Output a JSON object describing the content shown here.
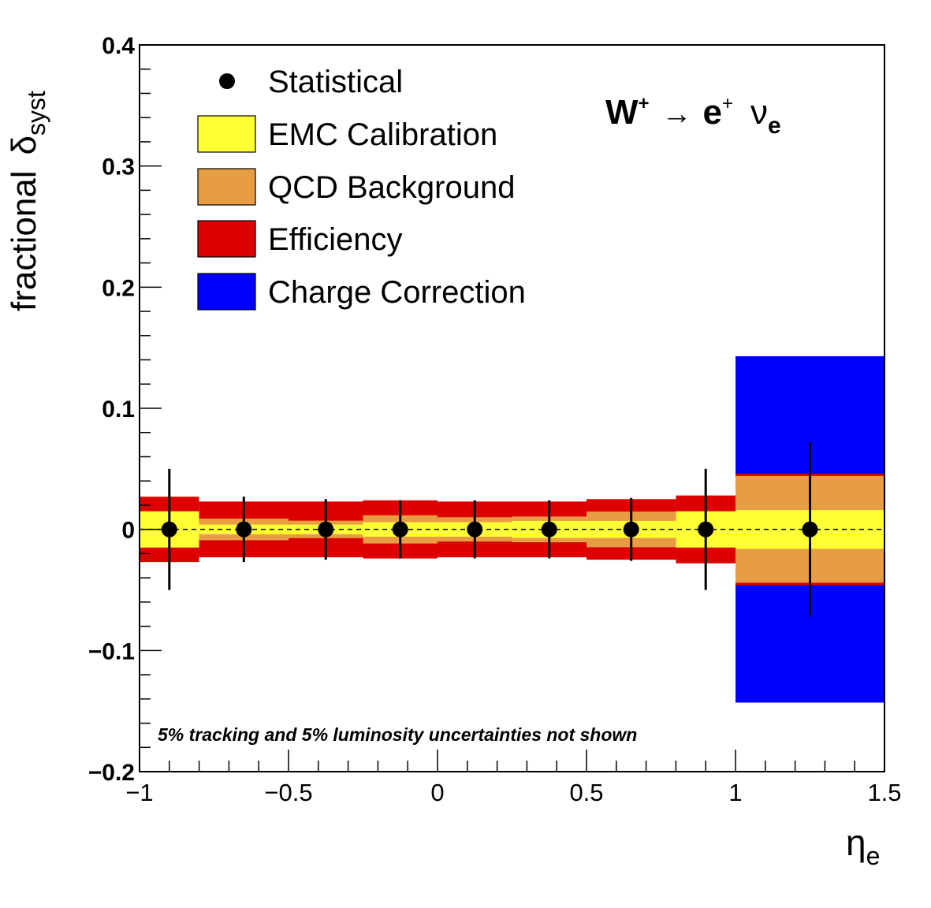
{
  "chart_data": {
    "type": "scatter",
    "xlabel": "η",
    "xlabel_sub": "e",
    "ylabel": "fractional",
    "ylabel_symbol": "δ",
    "ylabel_sub": "syst",
    "xlim": [
      -1,
      1.5
    ],
    "ylim": [
      -0.2,
      0.4
    ],
    "x_ticks": [
      -1,
      -0.5,
      0,
      0.5,
      1,
      1.5
    ],
    "x_tick_labels": [
      "−1",
      "−0.5",
      "0",
      "0.5",
      "1",
      "1.5"
    ],
    "y_ticks": [
      -0.2,
      -0.1,
      0,
      0.1,
      0.2,
      0.3,
      0.4
    ],
    "y_tick_labels": [
      "−0.2",
      "−0.1",
      "0",
      "0.1",
      "0.2",
      "0.3",
      "0.4"
    ],
    "reference_line": 0,
    "process_label": {
      "w": "W",
      "w_sup": "+",
      "arrow": "→",
      "e": "e",
      "e_sup": "+",
      "nu": "ν",
      "nu_sub": "e"
    },
    "note": "5% tracking and 5% luminosity uncertainties not shown",
    "legend": [
      {
        "key": "statistical",
        "label": "Statistical",
        "style": "marker"
      },
      {
        "key": "emc",
        "label": "EMC Calibration",
        "style": "box",
        "color": "#ffff33"
      },
      {
        "key": "qcd",
        "label": "QCD Background",
        "style": "box",
        "color": "#e89c44"
      },
      {
        "key": "efficiency",
        "label": "Efficiency",
        "style": "box",
        "color": "#dd0000"
      },
      {
        "key": "charge",
        "label": "Charge Correction",
        "style": "box",
        "color": "#0000ff"
      }
    ],
    "bins": [
      {
        "x_low": -1.0,
        "x_high": -0.8,
        "x": -0.9,
        "y": 0,
        "stat": 0.05,
        "emc": 0.015,
        "qcd": 0.0,
        "efficiency": 0.027,
        "charge": 0.0
      },
      {
        "x_low": -0.8,
        "x_high": -0.5,
        "x": -0.65,
        "y": 0,
        "stat": 0.027,
        "emc": 0.004,
        "qcd": 0.008,
        "efficiency": 0.023,
        "charge": 0.0
      },
      {
        "x_low": -0.5,
        "x_high": -0.25,
        "x": -0.375,
        "y": 0,
        "stat": 0.025,
        "emc": 0.004,
        "qcd": 0.006,
        "efficiency": 0.023,
        "charge": 0.0
      },
      {
        "x_low": -0.25,
        "x_high": 0.0,
        "x": -0.125,
        "y": 0,
        "stat": 0.024,
        "emc": 0.006,
        "qcd": 0.01,
        "efficiency": 0.024,
        "charge": 0.0
      },
      {
        "x_low": 0.0,
        "x_high": 0.25,
        "x": 0.125,
        "y": 0,
        "stat": 0.024,
        "emc": 0.006,
        "qcd": 0.008,
        "efficiency": 0.023,
        "charge": 0.0
      },
      {
        "x_low": 0.25,
        "x_high": 0.5,
        "x": 0.375,
        "y": 0,
        "stat": 0.024,
        "emc": 0.007,
        "qcd": 0.008,
        "efficiency": 0.023,
        "charge": 0.0
      },
      {
        "x_low": 0.5,
        "x_high": 0.8,
        "x": 0.65,
        "y": 0,
        "stat": 0.026,
        "emc": 0.007,
        "qcd": 0.013,
        "efficiency": 0.025,
        "charge": 0.0
      },
      {
        "x_low": 0.8,
        "x_high": 1.0,
        "x": 0.9,
        "y": 0,
        "stat": 0.05,
        "emc": 0.015,
        "qcd": 0.0,
        "efficiency": 0.028,
        "charge": 0.0
      },
      {
        "x_low": 1.0,
        "x_high": 1.5,
        "x": 1.25,
        "y": 0,
        "stat": 0.072,
        "emc": 0.016,
        "qcd": 0.041,
        "efficiency": 0.046,
        "charge": 0.143
      }
    ]
  },
  "colors": {
    "emc": "#ffff33",
    "qcd": "#e89c44",
    "efficiency": "#dd0000",
    "charge": "#0000ff",
    "marker": "#000000",
    "frame": "#000000"
  }
}
